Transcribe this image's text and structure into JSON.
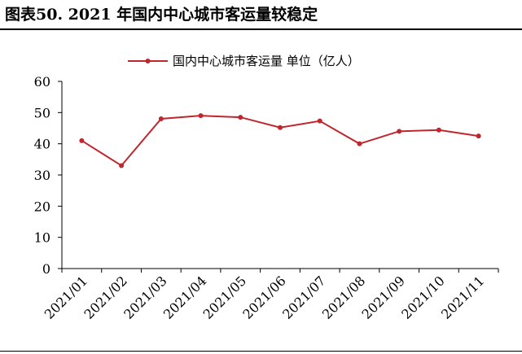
{
  "figure_title": "图表50. 2021 年国内中心城市客运量较稳定",
  "colors": {
    "series": "#C0262D",
    "axis": "#000000"
  },
  "chart_data": {
    "type": "line",
    "title": "",
    "xlabel": "",
    "ylabel": "",
    "x": [
      "2021/01",
      "2021/02",
      "2021/03",
      "2021/04",
      "2021/05",
      "2021/06",
      "2021/07",
      "2021/08",
      "2021/09",
      "2021/10",
      "2021/11"
    ],
    "ylim": [
      0,
      60
    ],
    "yticks": [
      0,
      10,
      20,
      30,
      40,
      50,
      60
    ],
    "grid": false,
    "legend_position": "top-center",
    "series": [
      {
        "name": "国内中心城市客运量 单位（亿人）",
        "values": [
          41.0,
          33.0,
          48.0,
          49.0,
          48.5,
          45.2,
          47.3,
          40.0,
          44.0,
          44.4,
          42.5
        ],
        "marker": "circle"
      }
    ]
  }
}
